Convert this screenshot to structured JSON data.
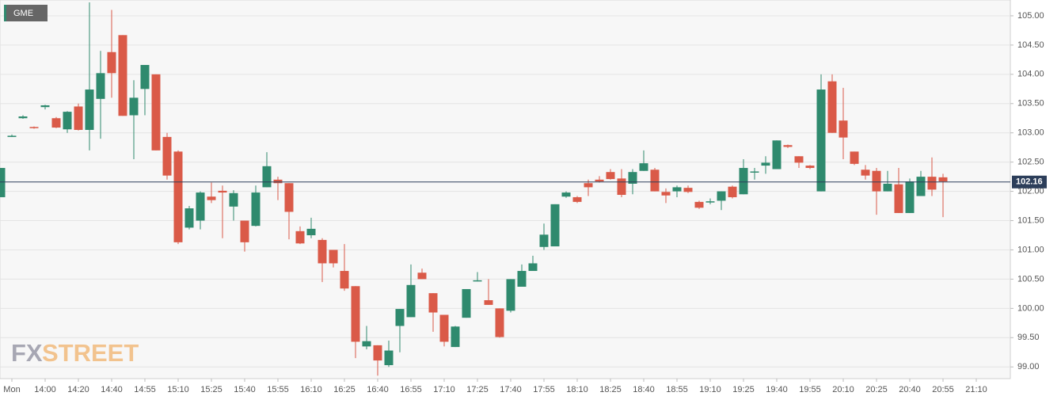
{
  "chart_data": {
    "type": "candlestick",
    "series_name": "GME",
    "watermark": [
      "FX",
      "STREET"
    ],
    "up_color": "#2f8a6e",
    "down_color": "#da5a48",
    "grid": true,
    "current_price": {
      "value": 102.16,
      "label": "102.16"
    },
    "ylim": [
      98.8,
      105.27
    ],
    "yticks": [
      {
        "value": 99,
        "label": "99.00"
      },
      {
        "value": 99.5,
        "label": "99.50"
      },
      {
        "value": 100,
        "label": "100.00"
      },
      {
        "value": 100.5,
        "label": "100.50"
      },
      {
        "value": 101,
        "label": "101.00"
      },
      {
        "value": 101.5,
        "label": "101.50"
      },
      {
        "value": 102,
        "label": "102.00"
      },
      {
        "value": 102.5,
        "label": "102.50"
      },
      {
        "value": 103,
        "label": "103.00"
      },
      {
        "value": 103.5,
        "label": "103.50"
      },
      {
        "value": 104,
        "label": "104.00"
      },
      {
        "value": 104.5,
        "label": "104.50"
      },
      {
        "value": 105,
        "label": "105.00"
      }
    ],
    "categories": [
      null,
      "Mon",
      null,
      null,
      "14:00",
      null,
      null,
      "14:20",
      null,
      null,
      "14:40",
      null,
      null,
      "14:55",
      null,
      null,
      "15:10",
      null,
      null,
      "15:25",
      null,
      null,
      "15:40",
      null,
      null,
      "15:55",
      null,
      null,
      "16:10",
      null,
      null,
      "16:25",
      null,
      null,
      "16:40",
      null,
      null,
      "16:55",
      null,
      null,
      "17:10",
      null,
      null,
      "17:25",
      null,
      null,
      "17:40",
      null,
      null,
      "17:55",
      null,
      null,
      "18:10",
      null,
      null,
      "18:25",
      null,
      null,
      "18:40",
      null,
      null,
      "18:55",
      null,
      null,
      "19:10",
      null,
      null,
      "19:25",
      null,
      null,
      "19:40",
      null,
      null,
      "19:55",
      null,
      null,
      "20:10",
      null,
      null,
      "20:25",
      null,
      null,
      "20:40",
      null,
      null,
      "20:55",
      null,
      null,
      "21:10",
      null,
      null
    ],
    "open": [
      101.9,
      102.95,
      103.25,
      103.1,
      103.44,
      103.25,
      103.06,
      103.45,
      103.05,
      103.58,
      104.38,
      104.67,
      103.3,
      103.75,
      104.0,
      102.93,
      102.68,
      101.38,
      101.5,
      101.91,
      102.01,
      101.74,
      101.5,
      101.41,
      102.07,
      102.2,
      102.14,
      101.32,
      101.25,
      101.17,
      101.0,
      100.64,
      100.38,
      99.35,
      99.37,
      99.03,
      99.7,
      99.85,
      100.61,
      100.26,
      99.89,
      99.34,
      99.84,
      100.47,
      100.14,
      100.0,
      99.96,
      100.37,
      100.64,
      101.05,
      101.06,
      101.91,
      101.9,
      102.14,
      102.2,
      102.33,
      102.22,
      102.13,
      102.35,
      102.37,
      101.99,
      102.0,
      102.06,
      101.82,
      101.81,
      101.84,
      102.08,
      101.95,
      102.33,
      102.44,
      102.38,
      102.79,
      102.6,
      102.44,
      102.0,
      103.88,
      103.21,
      102.68,
      102.37,
      102.35,
      102.0,
      102.12,
      101.63,
      101.92,
      102.25,
      102.24,
      null,
      null,
      null,
      null,
      null
    ],
    "high": [
      102.4,
      102.97,
      103.3,
      103.11,
      103.48,
      103.27,
      103.37,
      103.5,
      105.23,
      104.4,
      105.1,
      104.67,
      103.9,
      104.16,
      104.0,
      103.0,
      102.7,
      101.75,
      102.0,
      102.15,
      102.1,
      102.02,
      101.5,
      102.1,
      102.67,
      102.25,
      102.14,
      101.4,
      101.55,
      101.2,
      101.0,
      101.1,
      100.38,
      99.7,
      99.37,
      99.45,
      99.99,
      100.75,
      100.68,
      100.26,
      99.89,
      99.7,
      100.33,
      100.62,
      100.5,
      100.0,
      100.5,
      100.75,
      100.9,
      101.45,
      101.78,
      102.0,
      101.92,
      102.2,
      102.26,
      102.38,
      102.38,
      102.38,
      102.7,
      102.4,
      102.05,
      102.1,
      102.1,
      101.84,
      101.88,
      102.0,
      102.1,
      102.55,
      102.4,
      102.6,
      102.87,
      102.8,
      102.6,
      102.45,
      104.0,
      104.0,
      103.77,
      102.68,
      102.45,
      102.4,
      102.35,
      102.4,
      102.22,
      102.35,
      102.58,
      102.3,
      null,
      null,
      null,
      null,
      null
    ],
    "low": [
      101.9,
      102.93,
      103.24,
      103.07,
      103.4,
      103.08,
      103.0,
      103.04,
      102.7,
      102.9,
      103.6,
      103.29,
      102.55,
      103.3,
      102.7,
      102.2,
      101.1,
      101.35,
      101.35,
      101.8,
      101.2,
      101.5,
      100.97,
      101.4,
      102.07,
      101.85,
      101.18,
      101.1,
      101.2,
      100.45,
      100.7,
      100.3,
      99.15,
      99.3,
      98.85,
      99.0,
      99.25,
      99.85,
      100.5,
      99.6,
      99.35,
      99.34,
      99.84,
      100.46,
      100.06,
      99.5,
      99.93,
      100.37,
      100.64,
      101.0,
      101.06,
      101.89,
      101.8,
      101.92,
      102.15,
      102.2,
      101.9,
      101.95,
      102.35,
      102.0,
      101.8,
      101.9,
      101.97,
      101.7,
      101.78,
      101.68,
      101.88,
      101.95,
      102.2,
      102.3,
      102.38,
      102.74,
      102.4,
      102.38,
      102.0,
      103.0,
      102.55,
      102.45,
      102.2,
      101.6,
      102.0,
      101.63,
      101.63,
      101.92,
      101.92,
      101.56,
      null,
      null,
      null,
      null,
      null
    ],
    "close": [
      102.4,
      102.95,
      103.28,
      103.08,
      103.47,
      103.09,
      103.36,
      103.05,
      103.74,
      104.02,
      104.02,
      103.29,
      103.6,
      104.16,
      102.7,
      102.27,
      101.13,
      101.71,
      101.98,
      101.85,
      101.98,
      101.97,
      101.13,
      101.98,
      102.43,
      102.14,
      101.65,
      101.11,
      101.36,
      100.77,
      100.77,
      100.34,
      99.43,
      99.44,
      99.11,
      99.28,
      99.99,
      100.4,
      100.5,
      99.93,
      99.43,
      99.69,
      100.33,
      100.48,
      100.06,
      99.51,
      100.5,
      100.64,
      100.77,
      101.26,
      101.78,
      101.98,
      101.82,
      102.07,
      102.17,
      102.21,
      101.94,
      102.33,
      102.48,
      102.0,
      101.93,
      102.07,
      101.99,
      101.72,
      101.83,
      102.0,
      101.9,
      102.4,
      102.34,
      102.49,
      102.87,
      102.76,
      102.49,
      102.4,
      103.74,
      103.0,
      102.92,
      102.47,
      102.27,
      102.0,
      102.13,
      101.63,
      102.17,
      102.25,
      102.03,
      102.17,
      null,
      null,
      null,
      null,
      null
    ]
  }
}
